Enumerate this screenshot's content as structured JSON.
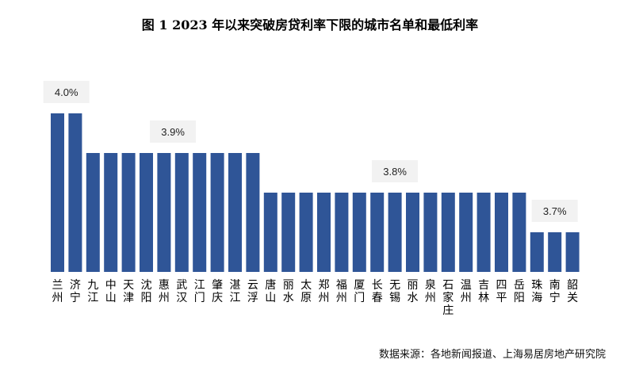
{
  "title": "图 1 2023 年以来突破房贷利率下限的城市名单和最低利率",
  "source": "数据来源：各地新闻报道、上海易居房地产研究院",
  "chart_data": {
    "type": "bar",
    "categories": [
      "兰州",
      "济宁",
      "九江",
      "中山",
      "天津",
      "沈阳",
      "惠州",
      "武汉",
      "江门",
      "肇庆",
      "湛江",
      "云浮",
      "唐山",
      "丽水",
      "太原",
      "郑州",
      "福州",
      "厦门",
      "长春",
      "无锡",
      "丽水",
      "泉州",
      "石家庄",
      "温州",
      "吉林",
      "四平",
      "岳阳",
      "珠海",
      "南宁",
      "韶关"
    ],
    "values": [
      4.0,
      4.0,
      3.9,
      3.9,
      3.9,
      3.9,
      3.9,
      3.9,
      3.9,
      3.9,
      3.9,
      3.9,
      3.8,
      3.8,
      3.8,
      3.8,
      3.8,
      3.8,
      3.8,
      3.8,
      3.8,
      3.8,
      3.8,
      3.8,
      3.8,
      3.8,
      3.8,
      3.7,
      3.7,
      3.7
    ],
    "group_labels": [
      {
        "text": "4.0%",
        "start": 0,
        "end": 1
      },
      {
        "text": "3.9%",
        "start": 2,
        "end": 11
      },
      {
        "text": "3.8%",
        "start": 12,
        "end": 26
      },
      {
        "text": "3.7%",
        "start": 27,
        "end": 29
      }
    ],
    "bar_color": "#2F5597",
    "label_box_color": "#F2F2F2",
    "xlabel": "",
    "ylabel": "",
    "grid": false,
    "legend": "none"
  }
}
